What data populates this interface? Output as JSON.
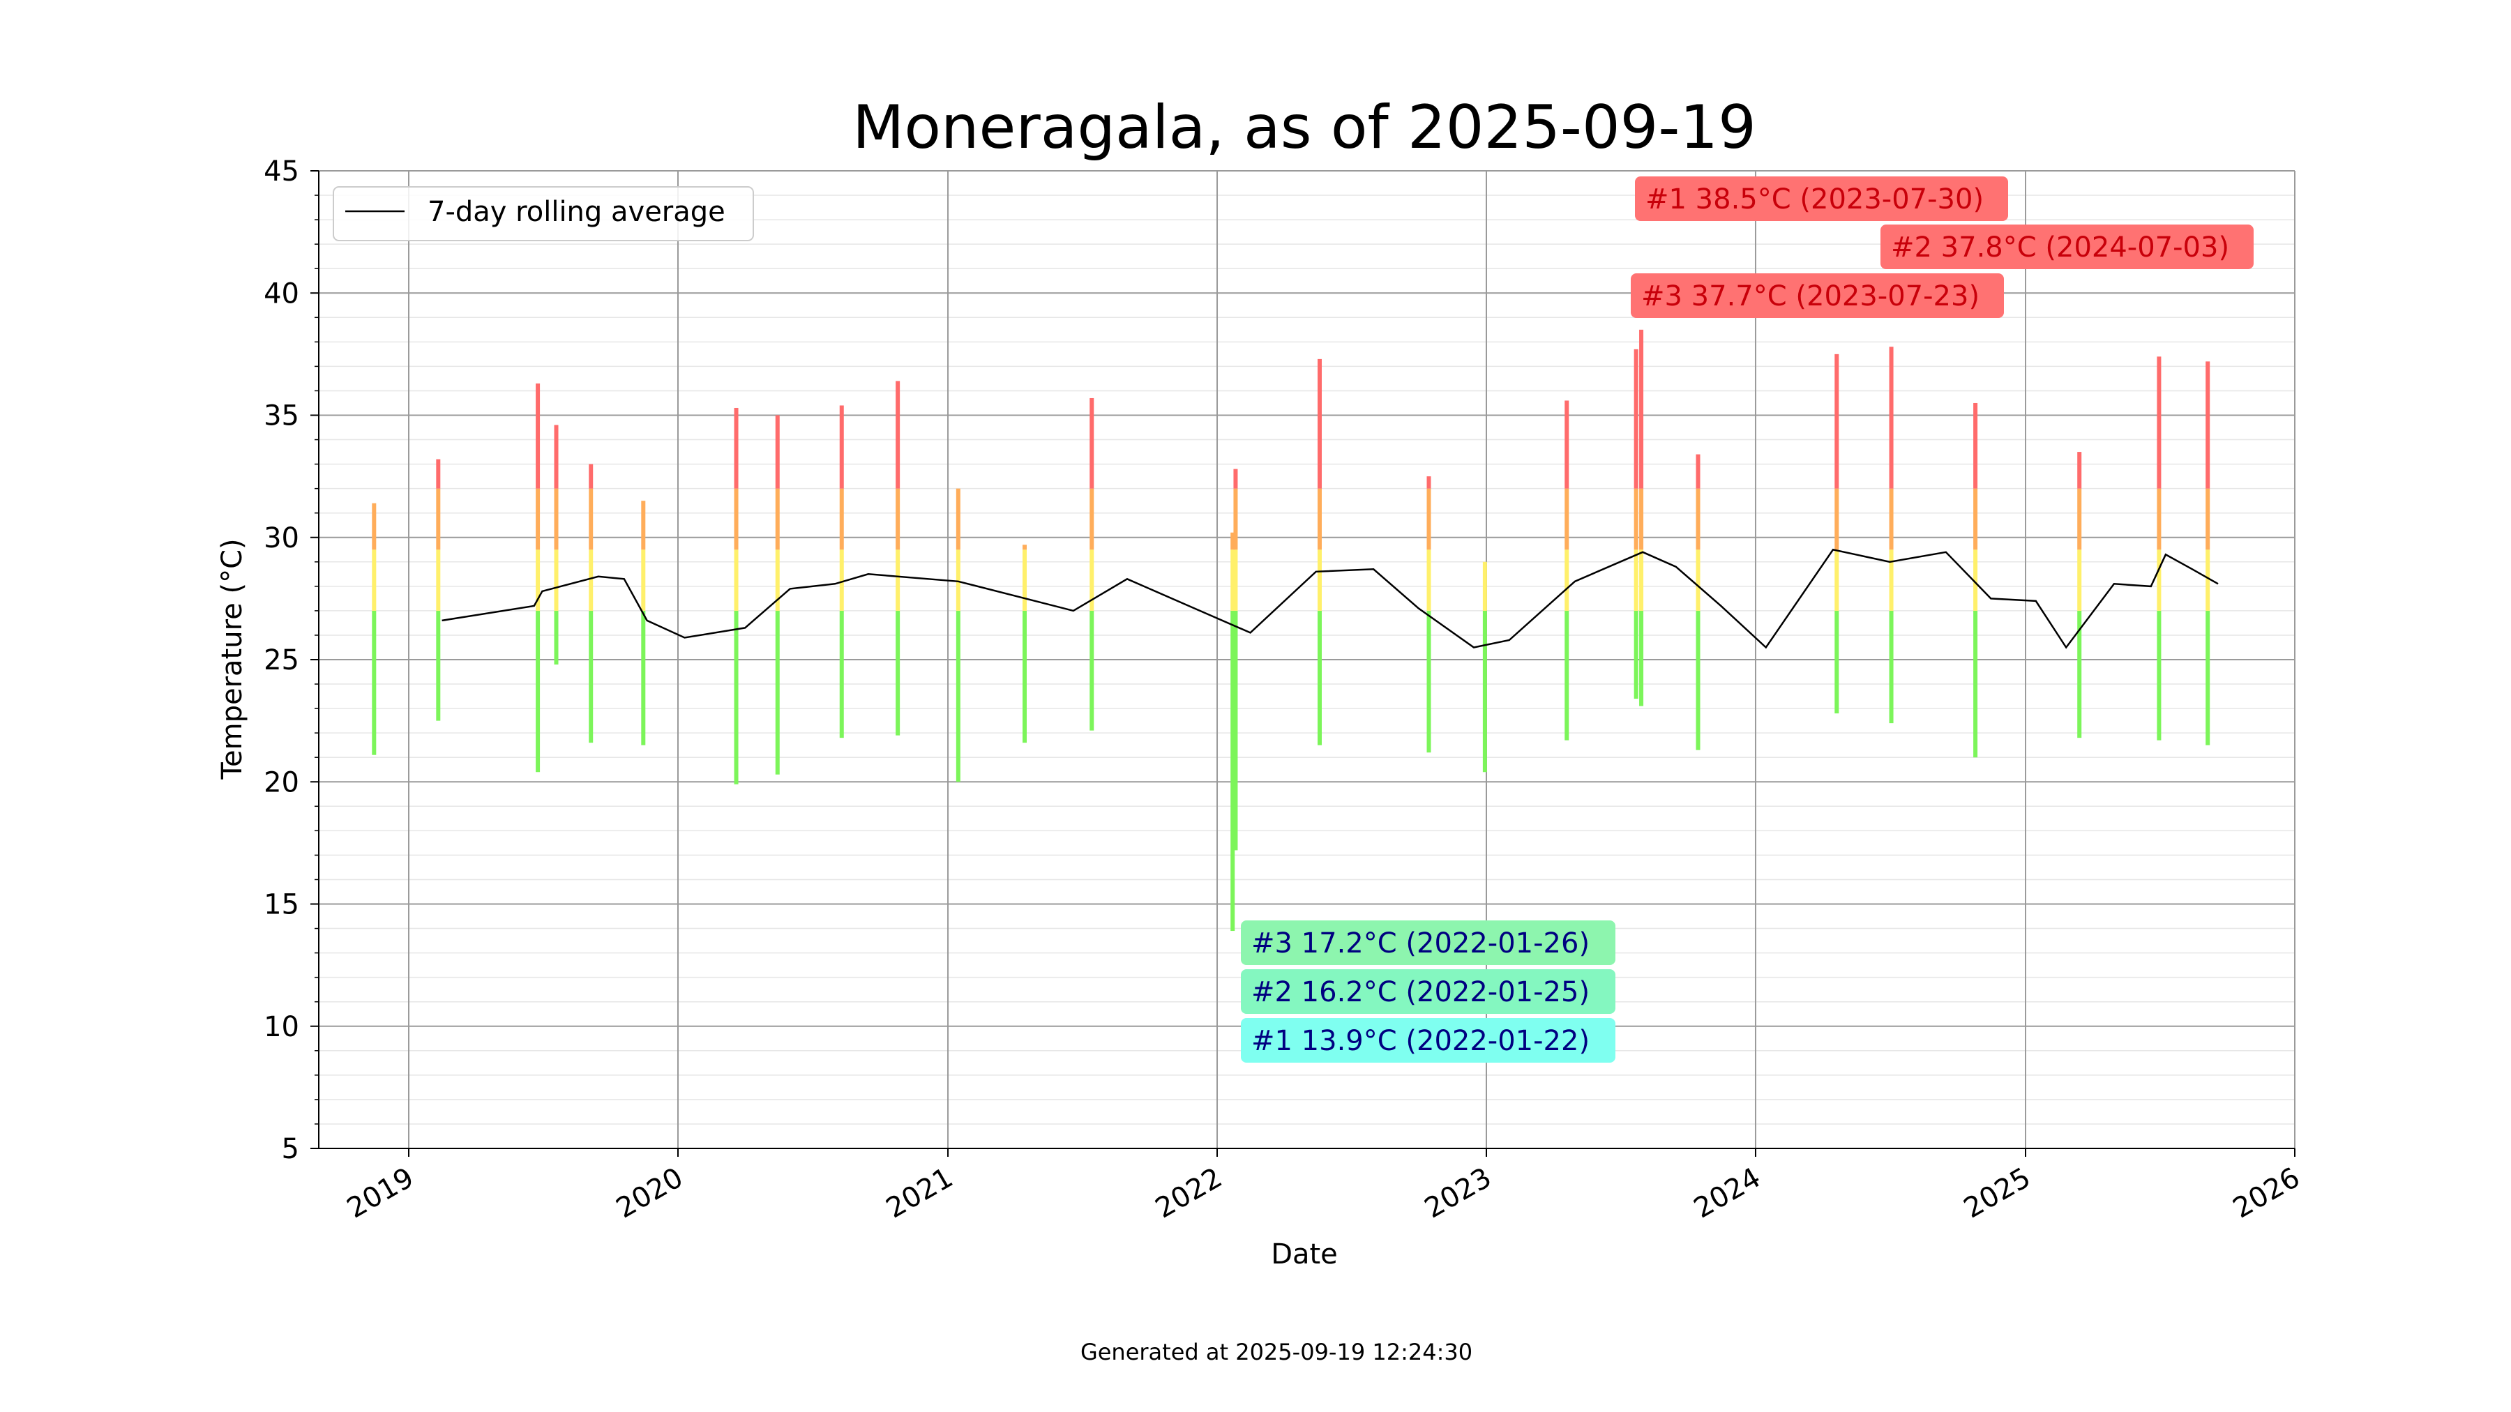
{
  "chart_data": {
    "type": "bar",
    "title": "Moneragala, as of 2025-09-19",
    "xlabel": "Date",
    "ylabel": "Temperature (°C)",
    "footer": "Generated at 2025-09-19 12:24:30",
    "x_range": [
      "2018-09-01",
      "2026-01-01"
    ],
    "ylim": [
      5,
      45
    ],
    "x_ticks": [
      "2019",
      "2020",
      "2021",
      "2022",
      "2023",
      "2024",
      "2025",
      "2026"
    ],
    "y_ticks": [
      5,
      10,
      15,
      20,
      25,
      30,
      35,
      40,
      45
    ],
    "grid": true,
    "legend": {
      "position": "top-left",
      "entries": [
        {
          "label": "7-day rolling average",
          "color": "#000000"
        }
      ]
    },
    "colors": {
      "hot": "#ff6b6b",
      "warm": "#ffad5a",
      "mild": "#fff06b",
      "cool": "#7cf55a",
      "rolling_average": "#000000",
      "max_label_bg": "#ff7272",
      "max_label_text": "#c8000a",
      "min_label_bg_1": "#7ffff0",
      "min_label_bg_2": "#84f7c0",
      "min_label_bg_3": "#8df5ae",
      "min_label_text": "#000080"
    },
    "daily_ranges": [
      {
        "date": "2018-11-15",
        "min": 21.1,
        "max": 31.4
      },
      {
        "date": "2019-02-10",
        "min": 22.5,
        "max": 33.2
      },
      {
        "date": "2019-06-25",
        "min": 20.4,
        "max": 36.3
      },
      {
        "date": "2019-07-20",
        "min": 24.8,
        "max": 34.6
      },
      {
        "date": "2019-09-05",
        "min": 21.6,
        "max": 33.0
      },
      {
        "date": "2019-11-15",
        "min": 21.5,
        "max": 31.5
      },
      {
        "date": "2020-03-20",
        "min": 19.9,
        "max": 35.3
      },
      {
        "date": "2020-05-15",
        "min": 20.3,
        "max": 35.0
      },
      {
        "date": "2020-08-10",
        "min": 21.8,
        "max": 35.4
      },
      {
        "date": "2020-10-25",
        "min": 21.9,
        "max": 36.4
      },
      {
        "date": "2021-01-15",
        "min": 20.0,
        "max": 32.0
      },
      {
        "date": "2021-04-15",
        "min": 21.6,
        "max": 29.7
      },
      {
        "date": "2021-07-15",
        "min": 22.1,
        "max": 35.7
      },
      {
        "date": "2022-01-22",
        "min": 13.9,
        "max": 30.2
      },
      {
        "date": "2022-01-26",
        "min": 17.2,
        "max": 32.8
      },
      {
        "date": "2022-05-20",
        "min": 21.5,
        "max": 37.3
      },
      {
        "date": "2022-10-15",
        "min": 21.2,
        "max": 32.5
      },
      {
        "date": "2022-12-30",
        "min": 20.4,
        "max": 29.0
      },
      {
        "date": "2023-04-20",
        "min": 21.7,
        "max": 35.6
      },
      {
        "date": "2023-07-23",
        "min": 23.4,
        "max": 37.7
      },
      {
        "date": "2023-07-30",
        "min": 23.1,
        "max": 38.5
      },
      {
        "date": "2023-10-15",
        "min": 21.3,
        "max": 33.4
      },
      {
        "date": "2024-04-20",
        "min": 22.8,
        "max": 37.5
      },
      {
        "date": "2024-07-03",
        "min": 22.4,
        "max": 37.8
      },
      {
        "date": "2024-10-25",
        "min": 21.0,
        "max": 35.5
      },
      {
        "date": "2025-03-15",
        "min": 21.8,
        "max": 33.5
      },
      {
        "date": "2025-07-01",
        "min": 21.7,
        "max": 37.4
      },
      {
        "date": "2025-09-05",
        "min": 21.5,
        "max": 37.2
      }
    ],
    "rolling_average": [
      {
        "x": "2019-02-15",
        "y": 26.6
      },
      {
        "x": "2019-06-20",
        "y": 27.2
      },
      {
        "x": "2019-07-01",
        "y": 27.8
      },
      {
        "x": "2019-09-15",
        "y": 28.4
      },
      {
        "x": "2019-10-20",
        "y": 28.3
      },
      {
        "x": "2019-11-20",
        "y": 26.6
      },
      {
        "x": "2020-01-10",
        "y": 25.9
      },
      {
        "x": "2020-04-01",
        "y": 26.3
      },
      {
        "x": "2020-06-01",
        "y": 27.9
      },
      {
        "x": "2020-08-01",
        "y": 28.1
      },
      {
        "x": "2020-09-15",
        "y": 28.5
      },
      {
        "x": "2021-01-15",
        "y": 28.2
      },
      {
        "x": "2021-06-20",
        "y": 27.0
      },
      {
        "x": "2021-09-01",
        "y": 28.3
      },
      {
        "x": "2021-12-01",
        "y": 27.1
      },
      {
        "x": "2022-02-15",
        "y": 26.1
      },
      {
        "x": "2022-05-15",
        "y": 28.6
      },
      {
        "x": "2022-08-01",
        "y": 28.7
      },
      {
        "x": "2022-10-01",
        "y": 27.1
      },
      {
        "x": "2022-12-15",
        "y": 25.5
      },
      {
        "x": "2023-02-01",
        "y": 25.8
      },
      {
        "x": "2023-05-01",
        "y": 28.2
      },
      {
        "x": "2023-08-01",
        "y": 29.4
      },
      {
        "x": "2023-09-15",
        "y": 28.8
      },
      {
        "x": "2023-11-15",
        "y": 27.2
      },
      {
        "x": "2024-01-15",
        "y": 25.5
      },
      {
        "x": "2024-04-15",
        "y": 29.5
      },
      {
        "x": "2024-07-01",
        "y": 29.0
      },
      {
        "x": "2024-09-15",
        "y": 29.4
      },
      {
        "x": "2024-11-15",
        "y": 27.5
      },
      {
        "x": "2025-01-15",
        "y": 27.4
      },
      {
        "x": "2025-02-25",
        "y": 25.5
      },
      {
        "x": "2025-05-01",
        "y": 28.1
      },
      {
        "x": "2025-06-20",
        "y": 28.0
      },
      {
        "x": "2025-07-10",
        "y": 29.3
      },
      {
        "x": "2025-08-15",
        "y": 28.7
      },
      {
        "x": "2025-09-19",
        "y": 28.1
      }
    ],
    "annotations": {
      "max": [
        {
          "text": "#1 38.5°C (2023-07-30)",
          "rank": 1,
          "value": 38.5,
          "date": "2023-07-30"
        },
        {
          "text": "#2 37.8°C (2024-07-03)",
          "rank": 2,
          "value": 37.8,
          "date": "2024-07-03"
        },
        {
          "text": "#3 37.7°C (2023-07-23)",
          "rank": 3,
          "value": 37.7,
          "date": "2023-07-23"
        }
      ],
      "min": [
        {
          "text": "#3 17.2°C (2022-01-26)",
          "rank": 3,
          "value": 17.2,
          "date": "2022-01-26"
        },
        {
          "text": "#2 16.2°C (2022-01-25)",
          "rank": 2,
          "value": 16.2,
          "date": "2022-01-25"
        },
        {
          "text": "#1 13.9°C (2022-01-22)",
          "rank": 1,
          "value": 13.9,
          "date": "2022-01-22"
        }
      ]
    }
  }
}
